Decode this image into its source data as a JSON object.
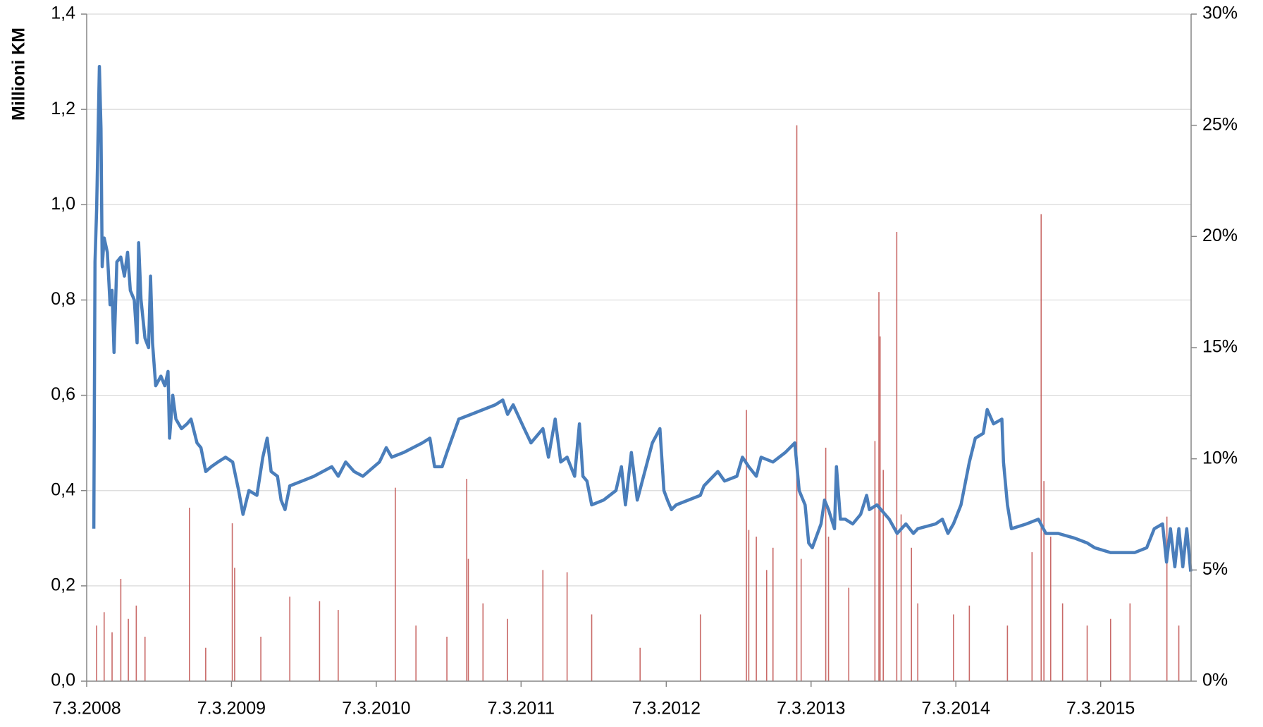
{
  "chart_data": {
    "type": "combo",
    "y_label": "Millioni KM",
    "xlim": [
      "7.3.2008",
      "21.10.2015"
    ],
    "xticks": [
      "7.3.2008",
      "7.3.2009",
      "7.3.2010",
      "7.3.2011",
      "7.3.2012",
      "7.3.2013",
      "7.3.2014",
      "7.3.2015"
    ],
    "ylim": [
      0,
      1.4
    ],
    "yticks": [
      {
        "value": 0,
        "label": "0,0"
      },
      {
        "value": 0.2,
        "label": "0,2"
      },
      {
        "value": 0.4,
        "label": "0,4"
      },
      {
        "value": 0.6,
        "label": "0,6"
      },
      {
        "value": 0.8,
        "label": "0,8"
      },
      {
        "value": 1.0,
        "label": "1,0"
      },
      {
        "value": 1.2,
        "label": "1,2"
      },
      {
        "value": 1.4,
        "label": "1,4"
      }
    ],
    "y2lim": [
      0,
      30
    ],
    "y2ticks": [
      {
        "value": 0,
        "label": "0%"
      },
      {
        "value": 5,
        "label": "5%"
      },
      {
        "value": 10,
        "label": "10%"
      },
      {
        "value": 15,
        "label": "15%"
      },
      {
        "value": 20,
        "label": "20%"
      },
      {
        "value": 25,
        "label": "25%"
      },
      {
        "value": 30,
        "label": "30%"
      }
    ],
    "grid": true,
    "series": [
      {
        "type": "bar",
        "axis": "y2",
        "color": "#c0504d",
        "x": [
          "1.4.2008",
          "20.4.2008",
          "10.5.2008",
          "1.6.2008",
          "20.6.2008",
          "10.7.2008",
          "1.8.2008",
          "21.11.2008",
          "1.1.2009",
          "9.3.2009",
          "15.3.2009",
          "20.5.2009",
          "1.8.2009",
          "15.10.2009",
          "1.12.2009",
          "24.4.2010",
          "15.6.2010",
          "1.9.2010",
          "21.10.2010",
          "25.10.2010",
          "1.12.2010",
          "1.2.2011",
          "1.5.2011",
          "1.7.2011",
          "1.9.2011",
          "1.1.2012",
          "1.6.2012",
          "25.9.2012",
          "1.10.2012",
          "20.10.2012",
          "15.11.2012",
          "1.12.2012",
          "30.1.2013",
          "10.2.2013",
          "13.4.2013",
          "20.4.2013",
          "10.6.2013",
          "15.8.2013",
          "25.8.2013",
          "28.8.2013",
          "5.9.2013",
          "9.10.2013",
          "20.10.2013",
          "15.11.2013",
          "1.12.2013",
          "1.3.2014",
          "10.4.2014",
          "15.7.2014",
          "15.9.2014",
          "8.10.2014",
          "15.10.2014",
          "1.11.2014",
          "1.12.2014",
          "1.2.2015",
          "1.4.2015",
          "20.5.2015",
          "21.8.2015",
          "20.9.2015"
        ],
        "values": [
          2.5,
          3.1,
          2.2,
          4.6,
          2.8,
          3.4,
          2.0,
          7.8,
          1.5,
          7.1,
          5.1,
          2.0,
          3.8,
          3.6,
          3.2,
          8.7,
          2.5,
          2.0,
          9.1,
          5.5,
          3.5,
          2.8,
          5.0,
          4.9,
          3.0,
          1.5,
          3.0,
          12.2,
          6.8,
          6.5,
          5.0,
          6.0,
          25.0,
          5.5,
          10.5,
          6.5,
          4.2,
          10.8,
          17.5,
          15.5,
          9.5,
          20.2,
          7.5,
          6.0,
          3.5,
          3.0,
          3.4,
          2.5,
          5.8,
          21.0,
          9.0,
          6.5,
          3.5,
          2.5,
          2.8,
          3.5,
          7.4,
          2.5
        ]
      },
      {
        "type": "line",
        "axis": "y",
        "color": "#4a7ebb",
        "x": [
          "25.3.2008",
          "28.3.2008",
          "1.4.2008",
          "8.4.2008",
          "12.4.2008",
          "15.4.2008",
          "20.4.2008",
          "28.4.2008",
          "5.5.2008",
          "10.5.2008",
          "15.5.2008",
          "22.5.2008",
          "1.6.2008",
          "10.6.2008",
          "18.6.2008",
          "25.6.2008",
          "5.7.2008",
          "12.7.2008",
          "16.7.2008",
          "22.7.2008",
          "1.8.2008",
          "10.8.2008",
          "15.8.2008",
          "20.8.2008",
          "28.8.2008",
          "10.9.2008",
          "20.9.2008",
          "28.9.2008",
          "2.10.2008",
          "10.10.2008",
          "18.10.2008",
          "1.11.2008",
          "15.11.2008",
          "25.11.2008",
          "10.12.2008",
          "20.12.2008",
          "1.1.2009",
          "15.1.2009",
          "1.2.2009",
          "20.2.2009",
          "10.3.2009",
          "25.3.2009",
          "5.4.2009",
          "20.4.2009",
          "10.5.2009",
          "25.5.2009",
          "5.6.2009",
          "15.6.2009",
          "1.7.2009",
          "10.7.2009",
          "20.7.2009",
          "1.8.2009",
          "1.9.2009",
          "1.10.2009",
          "15.11.2009",
          "1.12.2009",
          "20.12.2009",
          "10.1.2010",
          "1.2.2010",
          "15.3.2010",
          "1.4.2010",
          "15.4.2010",
          "15.5.2010",
          "1.7.2010",
          "20.7.2010",
          "1.8.2010",
          "20.8.2010",
          "1.9.2010",
          "1.10.2010",
          "1.11.2010",
          "1.1.2011",
          "20.1.2011",
          "1.2.2011",
          "15.2.2011",
          "15.3.2011",
          "1.4.2011",
          "1.5.2011",
          "15.5.2011",
          "1.6.2011",
          "15.6.2011",
          "1.7.2011",
          "20.7.2011",
          "1.8.2011",
          "10.8.2011",
          "20.8.2011",
          "1.9.2011",
          "1.10.2011",
          "1.11.2011",
          "15.11.2011",
          "25.11.2011",
          "10.12.2011",
          "25.12.2011",
          "1.2.2012",
          "20.2.2012",
          "1.3.2012",
          "10.3.2012",
          "20.3.2012",
          "1.4.2012",
          "1.6.2012",
          "10.6.2012",
          "15.7.2012",
          "1.8.2012",
          "1.9.2012",
          "15.9.2012",
          "1.10.2012",
          "20.10.2012",
          "1.11.2012",
          "1.12.2012",
          "1.1.2013",
          "25.1.2013",
          "5.2.2013",
          "20.2.2013",
          "1.3.2013",
          "10.3.2013",
          "1.4.2013",
          "10.4.2013",
          "20.4.2013",
          "5.5.2013",
          "10.5.2013",
          "20.5.2013",
          "1.6.2013",
          "20.6.2013",
          "10.7.2013",
          "25.7.2013",
          "1.8.2013",
          "20.8.2013",
          "20.9.2013",
          "10.10.2013",
          "1.11.2013",
          "20.11.2013",
          "1.12.2013",
          "15.1.2014",
          "1.2.2014",
          "15.2.2014",
          "1.3.2014",
          "20.3.2014",
          "10.4.2014",
          "25.4.2014",
          "15.5.2014",
          "25.5.2014",
          "10.6.2014",
          "1.7.2014",
          "5.7.2014",
          "15.7.2014",
          "25.7.2014",
          "1.9.2014",
          "1.10.2014",
          "20.10.2014",
          "20.11.2014",
          "1.1.2015",
          "1.2.2015",
          "20.2.2015",
          "1.4.2015",
          "1.6.2015",
          "1.7.2015",
          "20.7.2015",
          "10.8.2015",
          "20.8.2015",
          "30.8.2015",
          "10.9.2015",
          "20.9.2015",
          "30.9.2015",
          "10.10.2015",
          "20.10.2015"
        ],
        "values": [
          0.32,
          0.88,
          0.99,
          1.29,
          1.16,
          0.87,
          0.93,
          0.9,
          0.79,
          0.82,
          0.69,
          0.88,
          0.89,
          0.85,
          0.9,
          0.82,
          0.8,
          0.71,
          0.92,
          0.8,
          0.72,
          0.7,
          0.85,
          0.71,
          0.62,
          0.64,
          0.62,
          0.65,
          0.51,
          0.6,
          0.55,
          0.53,
          0.54,
          0.55,
          0.5,
          0.49,
          0.44,
          0.45,
          0.46,
          0.47,
          0.46,
          0.4,
          0.35,
          0.4,
          0.39,
          0.47,
          0.51,
          0.44,
          0.43,
          0.38,
          0.36,
          0.41,
          0.42,
          0.43,
          0.45,
          0.43,
          0.46,
          0.44,
          0.43,
          0.46,
          0.49,
          0.47,
          0.48,
          0.5,
          0.51,
          0.45,
          0.45,
          0.48,
          0.55,
          0.56,
          0.58,
          0.59,
          0.56,
          0.58,
          0.53,
          0.5,
          0.53,
          0.47,
          0.55,
          0.46,
          0.47,
          0.43,
          0.54,
          0.43,
          0.42,
          0.37,
          0.38,
          0.4,
          0.45,
          0.37,
          0.48,
          0.38,
          0.5,
          0.53,
          0.4,
          0.38,
          0.36,
          0.37,
          0.39,
          0.41,
          0.44,
          0.42,
          0.43,
          0.47,
          0.45,
          0.43,
          0.47,
          0.46,
          0.48,
          0.5,
          0.4,
          0.37,
          0.29,
          0.28,
          0.33,
          0.38,
          0.36,
          0.32,
          0.45,
          0.34,
          0.34,
          0.33,
          0.35,
          0.39,
          0.36,
          0.37,
          0.34,
          0.31,
          0.33,
          0.31,
          0.32,
          0.33,
          0.34,
          0.31,
          0.33,
          0.37,
          0.46,
          0.51,
          0.52,
          0.57,
          0.54,
          0.55,
          0.46,
          0.37,
          0.32,
          0.33,
          0.34,
          0.31,
          0.31,
          0.3,
          0.29,
          0.28,
          0.27,
          0.27,
          0.28,
          0.32,
          0.33,
          0.25,
          0.32,
          0.24,
          0.32,
          0.24,
          0.32,
          0.23
        ]
      }
    ]
  }
}
